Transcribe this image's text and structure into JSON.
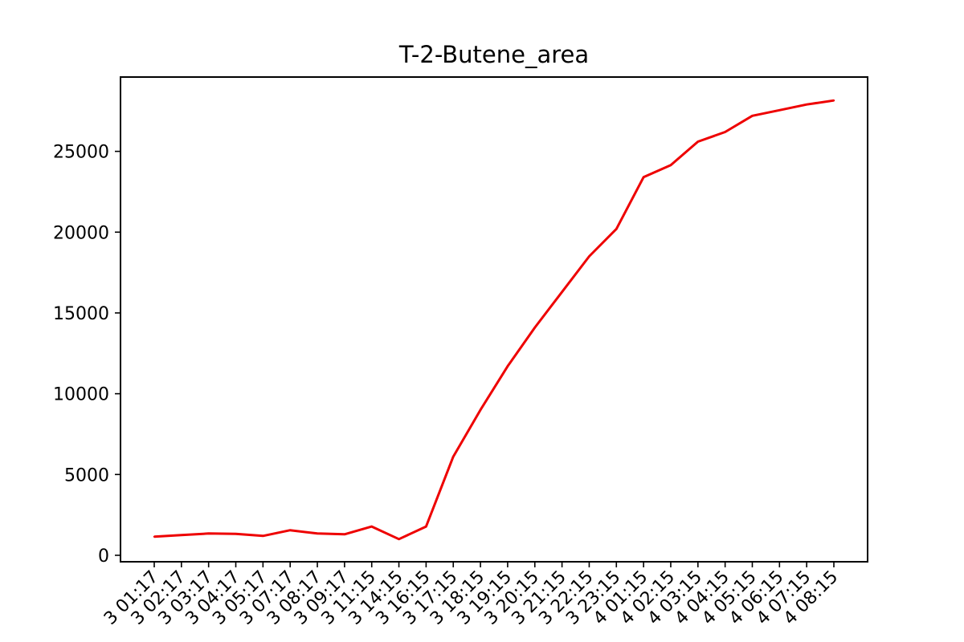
{
  "chart_data": {
    "type": "line",
    "title": "T-2-Butene_area",
    "xlabel": "",
    "ylabel": "",
    "ylim": [
      -400,
      29600
    ],
    "yticks": [
      0,
      5000,
      10000,
      15000,
      20000,
      25000
    ],
    "ytick_labels": [
      "0",
      "5000",
      "10000",
      "15000",
      "20000",
      "25000"
    ],
    "grid": false,
    "legend": "none",
    "x": [
      "3 01:17",
      "3 02:17",
      "3 03:17",
      "3 04:17",
      "3 05:17",
      "3 07:17",
      "3 08:17",
      "3 09:17",
      "3 11:15",
      "3 14:15",
      "3 16:15",
      "3 17:15",
      "3 18:15",
      "3 19:15",
      "3 20:15",
      "3 21:15",
      "3 22:15",
      "3 23:15",
      "4 01:15",
      "4 02:15",
      "4 03:15",
      "4 04:15",
      "4 05:15",
      "4 06:15",
      "4 07:15",
      "4 08:15"
    ],
    "series": [
      {
        "color": "#ee0000",
        "values": [
          1150,
          1250,
          1350,
          1330,
          1200,
          1550,
          1350,
          1300,
          1780,
          1000,
          1780,
          6100,
          9000,
          11700,
          14100,
          16300,
          18500,
          20200,
          23400,
          24150,
          25600,
          26200,
          27200,
          27550,
          27900,
          28150
        ]
      }
    ]
  }
}
